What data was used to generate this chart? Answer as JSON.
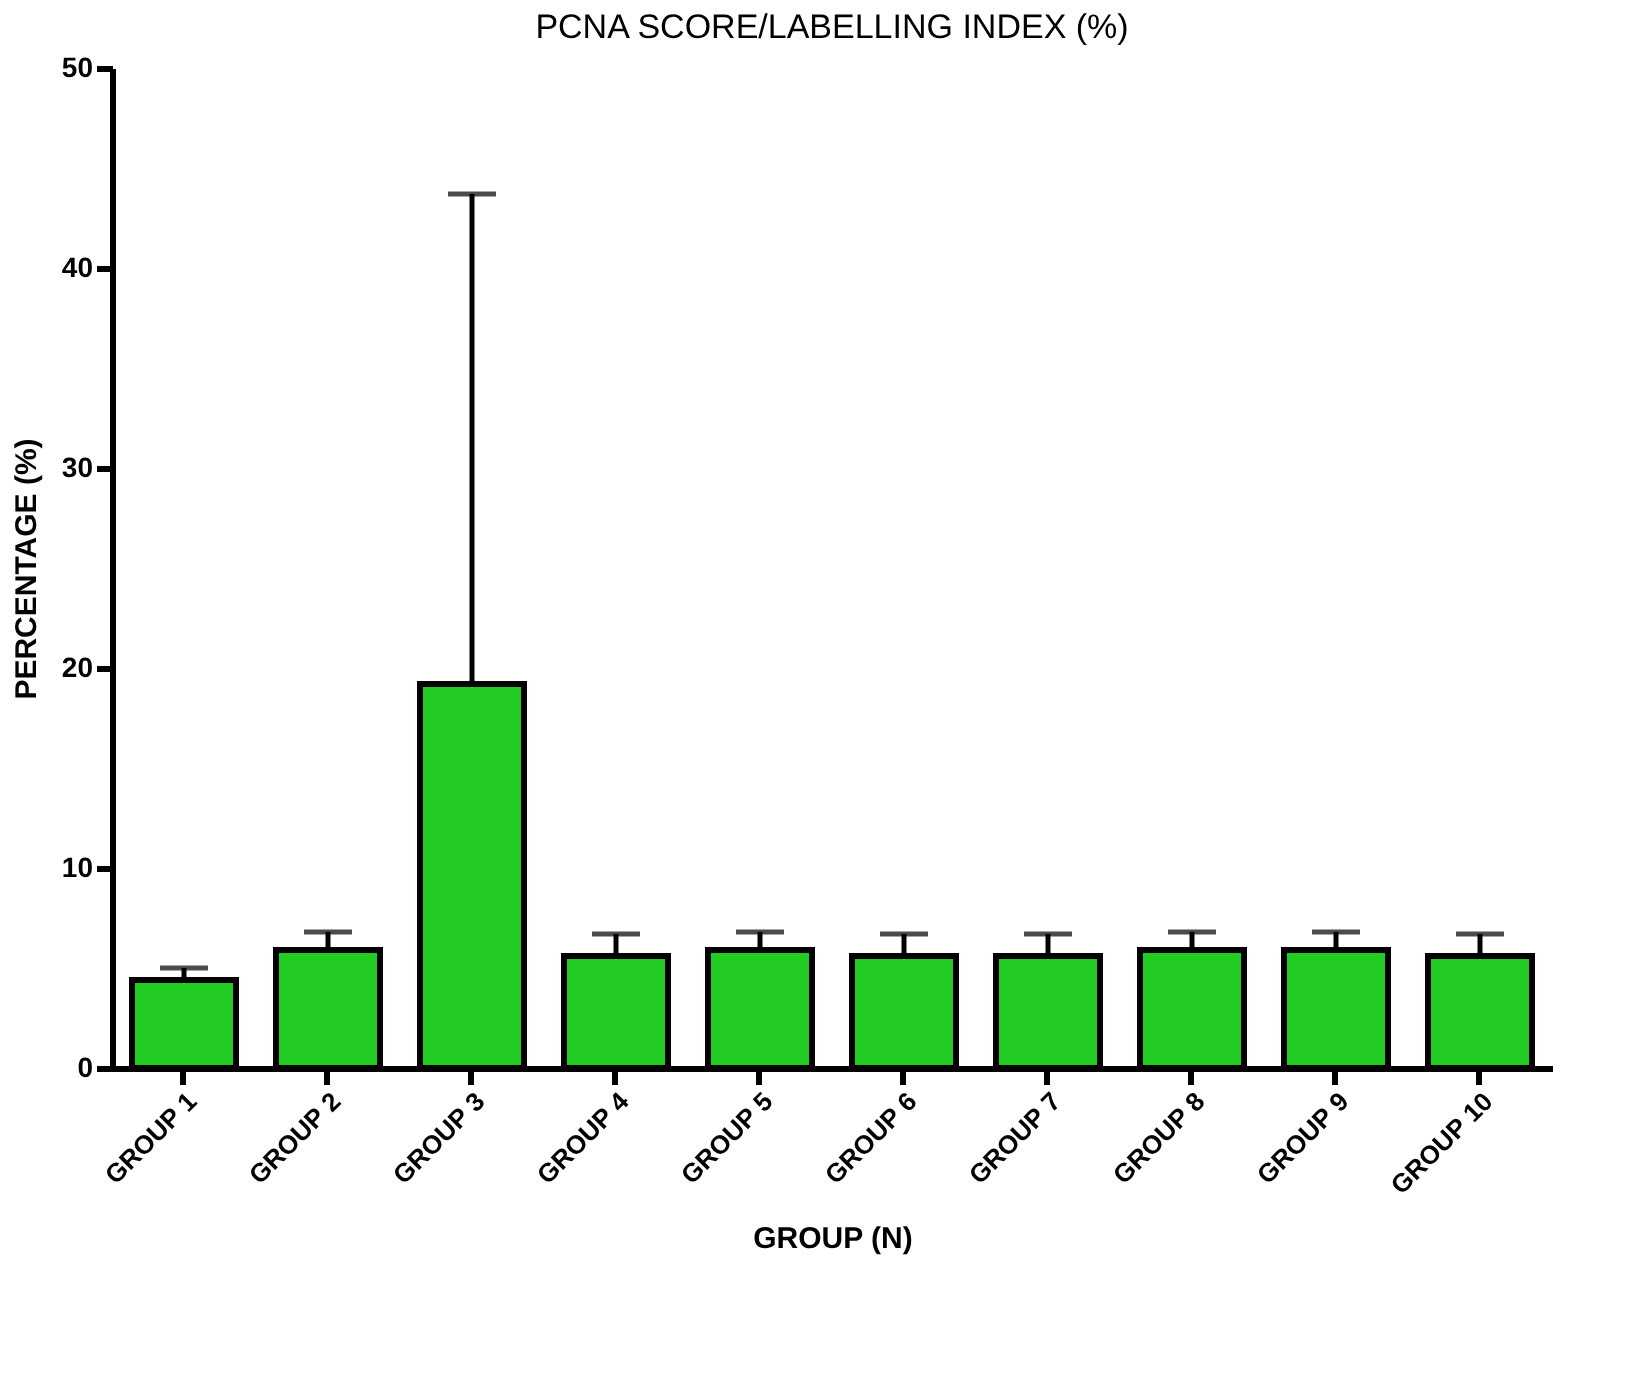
{
  "chart_data": {
    "type": "bar",
    "title": "PCNA SCORE/LABELLING INDEX (%)",
    "xlabel": "GROUP (N)",
    "ylabel": "PERCENTAGE (%)",
    "categories": [
      "GROUP 1",
      "GROUP 2",
      "GROUP 3",
      "GROUP 4",
      "GROUP 5",
      "GROUP 6",
      "GROUP 7",
      "GROUP 8",
      "GROUP 9",
      "GROUP 10"
    ],
    "values": [
      4.4,
      5.9,
      19.2,
      5.6,
      5.9,
      5.6,
      5.6,
      5.9,
      5.9,
      5.6
    ],
    "errors": [
      [
        4.4,
        5.0
      ],
      [
        5.9,
        6.8
      ],
      [
        19.2,
        43.7
      ],
      [
        5.6,
        6.7
      ],
      [
        5.9,
        6.8
      ],
      [
        5.6,
        6.7
      ],
      [
        5.6,
        6.7
      ],
      [
        5.9,
        6.8
      ],
      [
        5.9,
        6.8
      ],
      [
        5.6,
        6.7
      ]
    ],
    "color": "#22cc22",
    "ylim": [
      0,
      50
    ],
    "yticks": [
      0,
      10,
      20,
      30,
      40,
      50
    ],
    "grid": false
  }
}
